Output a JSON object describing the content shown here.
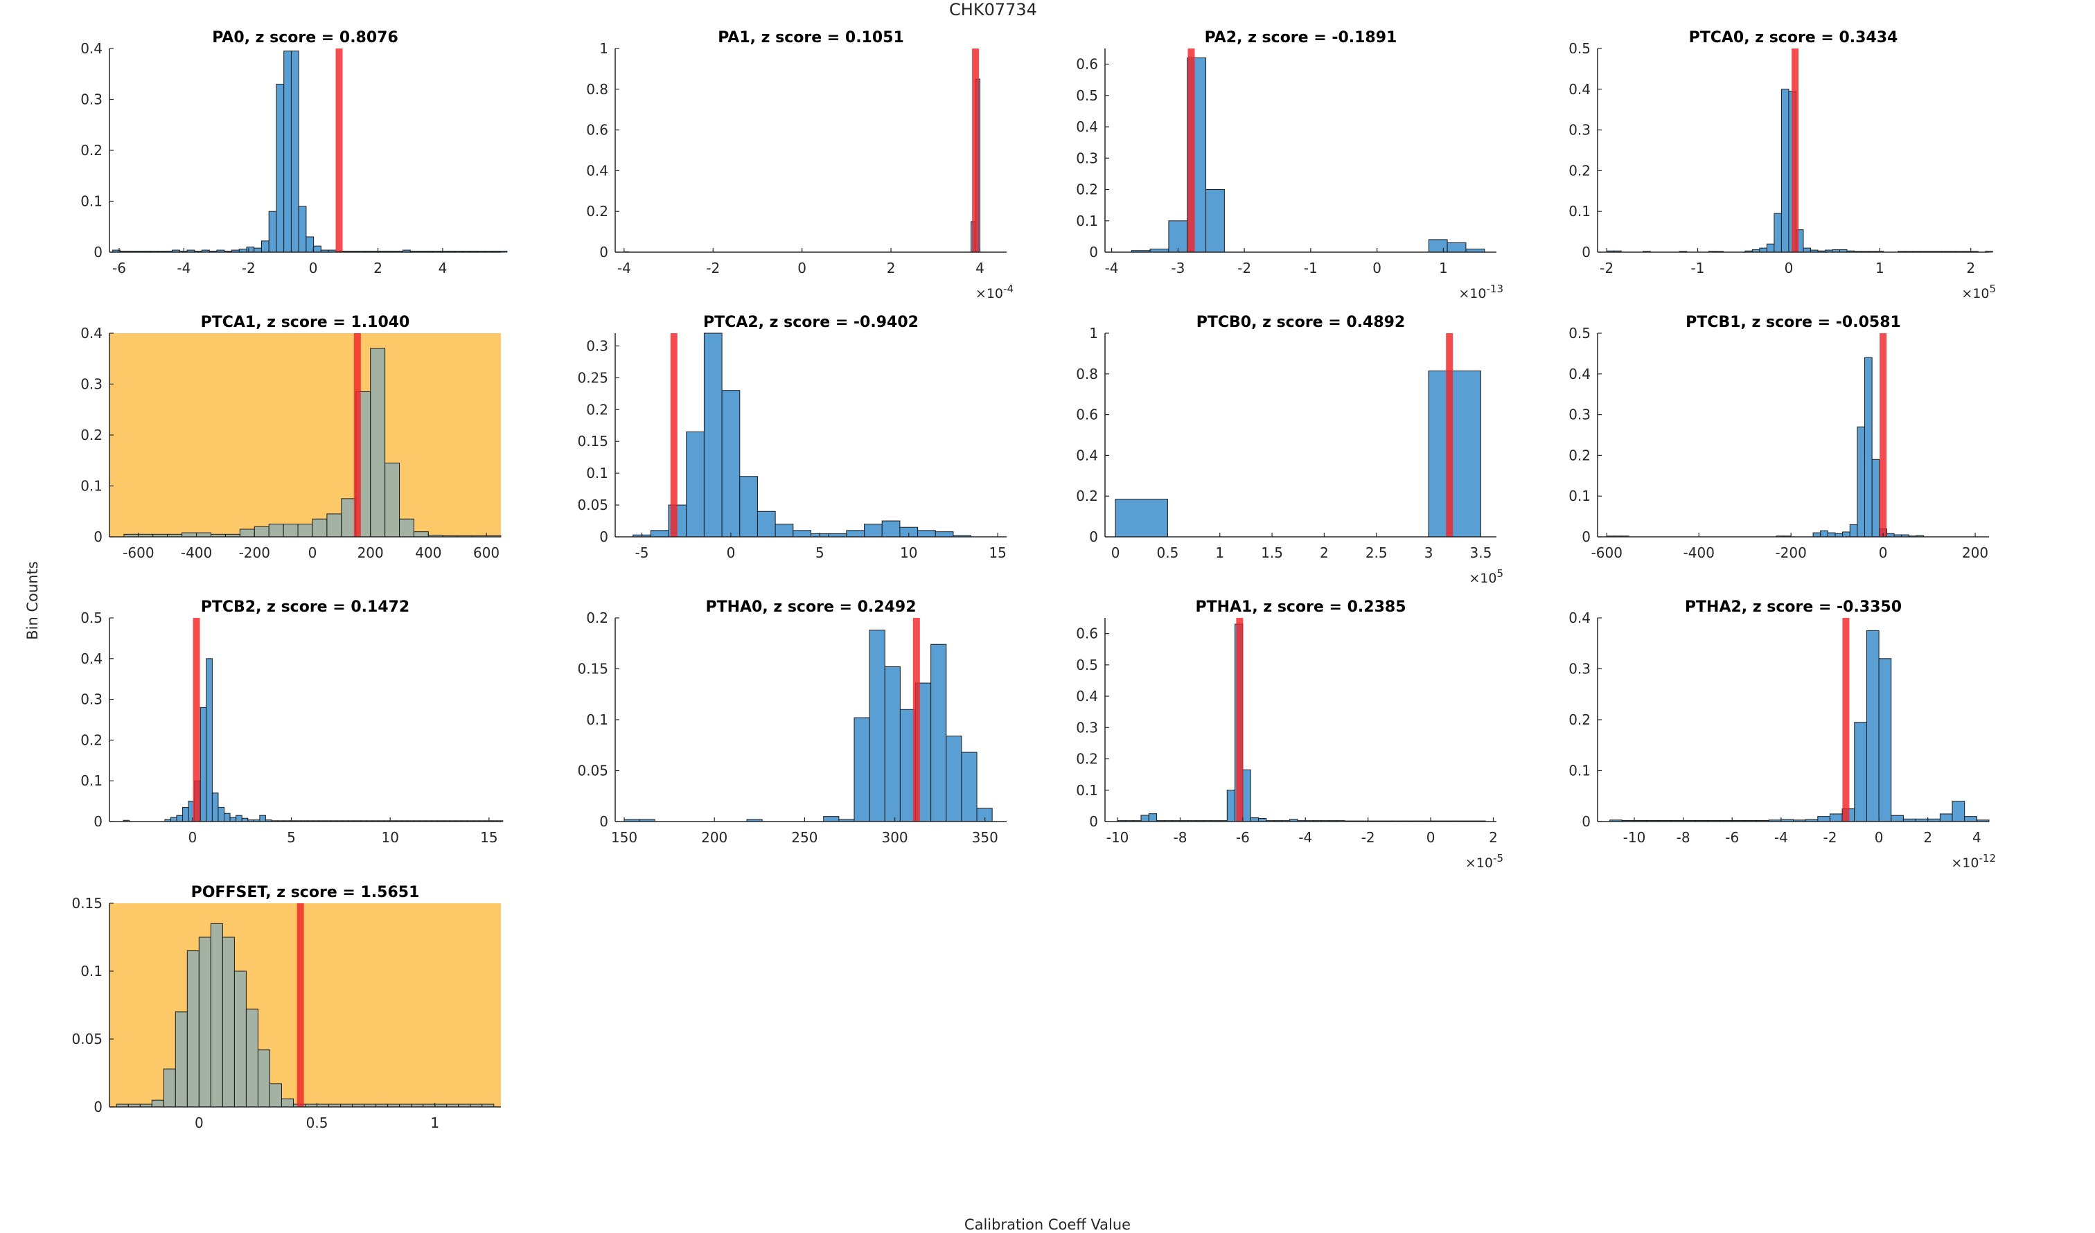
{
  "figure": {
    "title": "CHK07734",
    "xlabel": "Calibration Coeff Value",
    "ylabel": "Bin Counts"
  },
  "colors": {
    "bar": "#5a9fd4",
    "bar_edge": "#1a1a1a",
    "marker": "#f0262a",
    "highlight_bg": "#fdc968",
    "axis": "#262626"
  },
  "chart_data": [
    {
      "type": "bar",
      "title": "PA0, z score = 0.8076",
      "highlight": false,
      "xlim": [
        -6.3,
        5.8
      ],
      "ylim": [
        0,
        0.4
      ],
      "xticks": [
        -6,
        -4,
        -2,
        0,
        2,
        4
      ],
      "xticklabels": [
        "-6",
        "-4",
        "-2",
        "0",
        "2",
        "4"
      ],
      "yticks": [
        0,
        0.1,
        0.2,
        0.3,
        0.4
      ],
      "yticklabels": [
        "0",
        "0.1",
        "0.2",
        "0.3",
        "0.4"
      ],
      "exponent": "",
      "bin_start": -6.2,
      "bin_width": 0.23,
      "values": [
        0.004,
        0.002,
        0.002,
        0.002,
        0.002,
        0.002,
        0.002,
        0.002,
        0.004,
        0.002,
        0.004,
        0.002,
        0.004,
        0.002,
        0.004,
        0.002,
        0.004,
        0.006,
        0.01,
        0.008,
        0.022,
        0.08,
        0.33,
        0.395,
        0.395,
        0.09,
        0.03,
        0.012,
        0.004,
        0.004,
        0.002,
        0.002,
        0.002,
        0.002,
        0.002,
        0.002,
        0.002,
        0.002,
        0.002,
        0.004,
        0.002,
        0.002,
        0.002,
        0.002,
        0.002,
        0.002,
        0.002,
        0.002,
        0.002,
        0.002,
        0.002,
        0.002,
        0.002
      ],
      "marker": 0.8
    },
    {
      "type": "bar",
      "title": "PA1, z score = 0.1051",
      "highlight": false,
      "xlim": [
        -4.2,
        4.6
      ],
      "ylim": [
        0,
        1
      ],
      "xticks": [
        -4,
        -2,
        0,
        2,
        4
      ],
      "xticklabels": [
        "-4",
        "-2",
        "0",
        "2",
        "4"
      ],
      "yticks": [
        0,
        0.2,
        0.4,
        0.6,
        0.8,
        1
      ],
      "yticklabels": [
        "0",
        "0.2",
        "0.4",
        "0.6",
        "0.8",
        "1"
      ],
      "exponent": "-4",
      "bin_start": -4.0,
      "bin_width": 0.1,
      "values": [
        0.002,
        0,
        0,
        0,
        0,
        0,
        0,
        0,
        0,
        0,
        0,
        0,
        0,
        0,
        0,
        0,
        0,
        0,
        0,
        0,
        0,
        0,
        0,
        0,
        0,
        0,
        0,
        0,
        0,
        0,
        0,
        0,
        0,
        0,
        0,
        0,
        0,
        0,
        0,
        0,
        0,
        0,
        0,
        0,
        0,
        0,
        0,
        0,
        0,
        0,
        0,
        0,
        0,
        0,
        0,
        0,
        0,
        0,
        0,
        0,
        0,
        0,
        0,
        0,
        0,
        0,
        0,
        0,
        0,
        0,
        0,
        0,
        0,
        0,
        0,
        0,
        0,
        0,
        0.15,
        0.85
      ],
      "marker": 3.9
    },
    {
      "type": "bar",
      "title": "PA2, z score = -0.1891",
      "highlight": false,
      "xlim": [
        -4.1,
        1.8
      ],
      "ylim": [
        0,
        0.65
      ],
      "xticks": [
        -4,
        -3,
        -2,
        -1,
        0,
        1
      ],
      "xticklabels": [
        "-4",
        "-3",
        "-2",
        "-1",
        "0",
        "1"
      ],
      "yticks": [
        0,
        0.1,
        0.2,
        0.3,
        0.4,
        0.5,
        0.6
      ],
      "yticklabels": [
        "0",
        "0.1",
        "0.2",
        "0.3",
        "0.4",
        "0.5",
        "0.6"
      ],
      "exponent": "-13",
      "bin_start": -3.7,
      "bin_width": 0.28,
      "values": [
        0.005,
        0.01,
        0.1,
        0.62,
        0.2,
        0,
        0,
        0,
        0,
        0,
        0,
        0,
        0,
        0,
        0,
        0,
        0.04,
        0.03,
        0.01
      ],
      "marker": -2.8
    },
    {
      "type": "bar",
      "title": "PTCA0, z score = 0.3434",
      "highlight": false,
      "xlim": [
        -2.1,
        2.2
      ],
      "ylim": [
        0,
        0.5
      ],
      "xticks": [
        -2,
        -1,
        0,
        1,
        2
      ],
      "xticklabels": [
        "-2",
        "-1",
        "0",
        "1",
        "2"
      ],
      "yticks": [
        0,
        0.1,
        0.2,
        0.3,
        0.4,
        0.5
      ],
      "yticklabels": [
        "0",
        "0.1",
        "0.2",
        "0.3",
        "0.4",
        "0.5"
      ],
      "exponent": "5",
      "bin_start": -2.0,
      "bin_width": 0.08,
      "values": [
        0.003,
        0.003,
        0,
        0,
        0,
        0.002,
        0,
        0,
        0,
        0,
        0.002,
        0,
        0,
        0,
        0.002,
        0.002,
        0,
        0,
        0,
        0.003,
        0.006,
        0.01,
        0.02,
        0.095,
        0.4,
        0.395,
        0.055,
        0.01,
        0.005,
        0.003,
        0.005,
        0.006,
        0.006,
        0.003,
        0.002,
        0.002,
        0.002,
        0.002,
        0,
        0,
        0.002,
        0.002,
        0.002,
        0.002,
        0.002,
        0.002,
        0.002,
        0.002,
        0.002,
        0.002,
        0.002,
        0,
        0.002
      ],
      "marker": 0.07
    },
    {
      "type": "bar",
      "title": "PTCA1, z score = 1.1040",
      "highlight": true,
      "xlim": [
        -700,
        650
      ],
      "ylim": [
        0,
        0.4
      ],
      "xticks": [
        -600,
        -400,
        -200,
        0,
        200,
        400,
        600
      ],
      "xticklabels": [
        "-600",
        "-400",
        "-200",
        "0",
        "200",
        "400",
        "600"
      ],
      "yticks": [
        0,
        0.1,
        0.2,
        0.3,
        0.4
      ],
      "yticklabels": [
        "0",
        "0.1",
        "0.2",
        "0.3",
        "0.4"
      ],
      "exponent": "",
      "bin_start": -650,
      "bin_width": 50,
      "values": [
        0.005,
        0.005,
        0.005,
        0.005,
        0.008,
        0.008,
        0.005,
        0.005,
        0.015,
        0.02,
        0.025,
        0.025,
        0.025,
        0.035,
        0.045,
        0.075,
        0.285,
        0.37,
        0.145,
        0.035,
        0.01,
        0.003,
        0.002,
        0.002,
        0.002,
        0.002
      ],
      "marker": 155
    },
    {
      "type": "bar",
      "title": "PTCA2, z score = -0.9402",
      "highlight": false,
      "xlim": [
        -6.5,
        15.5
      ],
      "ylim": [
        0,
        0.32
      ],
      "xticks": [
        -5,
        0,
        5,
        10,
        15
      ],
      "xticklabels": [
        "-5",
        "0",
        "5",
        "10",
        "15"
      ],
      "yticks": [
        0,
        0.05,
        0.1,
        0.15,
        0.2,
        0.25,
        0.3
      ],
      "yticklabels": [
        "0",
        "0.05",
        "0.1",
        "0.15",
        "0.2",
        "0.25",
        "0.3"
      ],
      "exponent": "",
      "bin_start": -5.5,
      "bin_width": 1.0,
      "values": [
        0.003,
        0.01,
        0.05,
        0.165,
        0.32,
        0.23,
        0.095,
        0.04,
        0.02,
        0.01,
        0.005,
        0.005,
        0.01,
        0.02,
        0.025,
        0.015,
        0.01,
        0.008,
        0.002,
        0
      ],
      "marker": -3.2
    },
    {
      "type": "bar",
      "title": "PTCB0, z score = 0.4892",
      "highlight": false,
      "xlim": [
        -0.1,
        3.65
      ],
      "ylim": [
        0,
        1
      ],
      "xticks": [
        0,
        0.5,
        1,
        1.5,
        2,
        2.5,
        3,
        3.5
      ],
      "xticklabels": [
        "0",
        "0.5",
        "1",
        "1.5",
        "2",
        "2.5",
        "3",
        "3.5"
      ],
      "yticks": [
        0,
        0.2,
        0.4,
        0.6,
        0.8,
        1
      ],
      "yticklabels": [
        "0",
        "0.2",
        "0.4",
        "0.6",
        "0.8",
        "1"
      ],
      "exponent": "5",
      "bin_start": 0,
      "bin_width": 0.5,
      "values": [
        0.185,
        0,
        0,
        0,
        0,
        0,
        0.815
      ],
      "marker": 3.2
    },
    {
      "type": "bar",
      "title": "PTCB1, z score = -0.0581",
      "highlight": false,
      "xlim": [
        -620,
        230
      ],
      "ylim": [
        0,
        0.5
      ],
      "xticks": [
        -600,
        -400,
        -200,
        0,
        200
      ],
      "xticklabels": [
        "-600",
        "-400",
        "-200",
        "0",
        "200"
      ],
      "yticks": [
        0,
        0.1,
        0.2,
        0.3,
        0.4,
        0.5
      ],
      "yticklabels": [
        "0",
        "0.1",
        "0.2",
        "0.3",
        "0.4",
        "0.5"
      ],
      "exponent": "",
      "bin_start": -600,
      "bin_width": 16,
      "values": [
        0.002,
        0.002,
        0.002,
        0,
        0,
        0,
        0,
        0,
        0,
        0,
        0,
        0,
        0,
        0,
        0,
        0,
        0,
        0,
        0,
        0,
        0,
        0,
        0,
        0.002,
        0.002,
        0,
        0,
        0,
        0.01,
        0.015,
        0.01,
        0.008,
        0.012,
        0.03,
        0.27,
        0.44,
        0.19,
        0.02,
        0.008,
        0.005,
        0.005,
        0.002,
        0.003
      ],
      "marker": 0
    },
    {
      "type": "bar",
      "title": "PTCB2, z score = 0.1472",
      "highlight": false,
      "xlim": [
        -4.2,
        15.6
      ],
      "ylim": [
        0,
        0.5
      ],
      "xticks": [
        0,
        5,
        10,
        15
      ],
      "xticklabels": [
        "0",
        "5",
        "10",
        "15"
      ],
      "yticks": [
        0,
        0.1,
        0.2,
        0.3,
        0.4,
        0.5
      ],
      "yticklabels": [
        "0",
        "0.1",
        "0.2",
        "0.3",
        "0.4",
        "0.5"
      ],
      "exponent": "",
      "bin_start": -3.5,
      "bin_width": 0.3,
      "values": [
        0.003,
        0,
        0,
        0,
        0,
        0,
        0,
        0.005,
        0.01,
        0.015,
        0.035,
        0.05,
        0.1,
        0.28,
        0.4,
        0.07,
        0.035,
        0.02,
        0.01,
        0.015,
        0.008,
        0.004,
        0.004,
        0.015,
        0.004,
        0.002,
        0.002,
        0.002,
        0.002,
        0.002,
        0.002,
        0.002,
        0.002,
        0.002,
        0.002,
        0.002,
        0.002,
        0.002,
        0.002,
        0.002,
        0.002,
        0.002,
        0.002,
        0.002,
        0.002,
        0.002,
        0.002,
        0.002,
        0.002,
        0.002,
        0.002,
        0.002,
        0.002,
        0.002,
        0.002,
        0.002,
        0.002,
        0.002,
        0.002,
        0.002,
        0.002,
        0.002,
        0.002,
        0.002
      ],
      "marker": 0.2
    },
    {
      "type": "bar",
      "title": "PTHA0, z score = 0.2492",
      "highlight": false,
      "xlim": [
        145,
        362
      ],
      "ylim": [
        0,
        0.2
      ],
      "xticks": [
        150,
        200,
        250,
        300,
        350
      ],
      "xticklabels": [
        "150",
        "200",
        "250",
        "300",
        "350"
      ],
      "yticks": [
        0,
        0.05,
        0.1,
        0.15,
        0.2
      ],
      "yticklabels": [
        "0",
        "0.05",
        "0.1",
        "0.15",
        "0.2"
      ],
      "exponent": "",
      "bin_start": 150,
      "bin_width": 8.5,
      "values": [
        0.002,
        0.002,
        0,
        0,
        0,
        0,
        0,
        0,
        0.002,
        0,
        0,
        0,
        0,
        0.005,
        0.002,
        0.102,
        0.188,
        0.152,
        0.11,
        0.136,
        0.174,
        0.084,
        0.068,
        0.013
      ],
      "marker": 312
    },
    {
      "type": "bar",
      "title": "PTHA1, z score = 0.2385",
      "highlight": false,
      "xlim": [
        -10.4,
        2.1
      ],
      "ylim": [
        0,
        0.65
      ],
      "xticks": [
        -10,
        -8,
        -6,
        -4,
        -2,
        0,
        2
      ],
      "xticklabels": [
        "-10",
        "-8",
        "-6",
        "-4",
        "-2",
        "0",
        "2"
      ],
      "yticks": [
        0,
        0.1,
        0.2,
        0.3,
        0.4,
        0.5,
        0.6
      ],
      "yticklabels": [
        "0",
        "0.1",
        "0.2",
        "0.3",
        "0.4",
        "0.5",
        "0.6"
      ],
      "exponent": "-5",
      "bin_start": -10,
      "bin_width": 0.25,
      "values": [
        0.003,
        0.003,
        0.003,
        0.02,
        0.025,
        0.003,
        0.003,
        0.003,
        0.003,
        0.003,
        0.003,
        0.003,
        0.003,
        0.003,
        0.1,
        0.63,
        0.165,
        0.012,
        0.01,
        0.003,
        0.003,
        0.003,
        0.007,
        0.003,
        0.003,
        0.003,
        0.003,
        0.003,
        0.003,
        0.002,
        0.002,
        0.002,
        0.002,
        0.002,
        0.002,
        0.002,
        0.002,
        0.002,
        0.002,
        0.002,
        0.002,
        0.002,
        0.002,
        0.002,
        0.002,
        0.002,
        0.002
      ],
      "marker": -6.1
    },
    {
      "type": "bar",
      "title": "PTHA2, z score = -0.3350",
      "highlight": false,
      "xlim": [
        -11.5,
        4.5
      ],
      "ylim": [
        0,
        0.4
      ],
      "xticks": [
        -10,
        -8,
        -6,
        -4,
        -2,
        0,
        2,
        4
      ],
      "xticklabels": [
        "-10",
        "-8",
        "-6",
        "-4",
        "-2",
        "0",
        "2",
        "4"
      ],
      "yticks": [
        0,
        0.1,
        0.2,
        0.3,
        0.4
      ],
      "yticklabels": [
        "0",
        "0.1",
        "0.2",
        "0.3",
        "0.4"
      ],
      "exponent": "-12",
      "bin_start": -11,
      "bin_width": 0.5,
      "values": [
        0.003,
        0.002,
        0.002,
        0.002,
        0.002,
        0.002,
        0.002,
        0.002,
        0.002,
        0.002,
        0.002,
        0.002,
        0.002,
        0.003,
        0.004,
        0.003,
        0.004,
        0.01,
        0.015,
        0.025,
        0.195,
        0.375,
        0.32,
        0.012,
        0.005,
        0.005,
        0.005,
        0.015,
        0.04,
        0.01,
        0.003
      ],
      "marker": -1.35
    },
    {
      "type": "bar",
      "title": "POFFSET, z score = 1.5651",
      "highlight": true,
      "xlim": [
        -0.38,
        1.28
      ],
      "ylim": [
        0,
        0.15
      ],
      "xticks": [
        0,
        0.5,
        1
      ],
      "xticklabels": [
        "0",
        "0.5",
        "1"
      ],
      "yticks": [
        0,
        0.05,
        0.1,
        0.15
      ],
      "yticklabels": [
        "0",
        "0.05",
        "0.1",
        "0.15"
      ],
      "exponent": "",
      "bin_start": -0.35,
      "bin_width": 0.05,
      "values": [
        0.002,
        0.002,
        0.002,
        0.005,
        0.028,
        0.07,
        0.115,
        0.125,
        0.135,
        0.125,
        0.1,
        0.072,
        0.042,
        0.017,
        0.006,
        0.002,
        0.002,
        0.002,
        0.002,
        0.002,
        0.002,
        0.002,
        0.002,
        0.002,
        0.002,
        0.002,
        0.002,
        0.002,
        0.002,
        0.002,
        0.002,
        0.002
      ],
      "marker": 0.43
    }
  ]
}
